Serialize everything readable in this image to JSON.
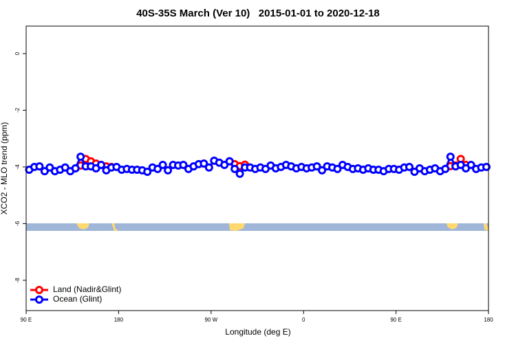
{
  "chart_data": {
    "type": "line",
    "title": "40S-35S March (Ver 10)   2015-01-01 to 2020-12-18",
    "xlabel": "Longitude (deg E)",
    "ylabel": "XCO2 - MLO trend (ppm)",
    "xlim": [
      90,
      540
    ],
    "ylim": [
      -9.07,
      0.97
    ],
    "xticks": [
      {
        "value": 90,
        "label": "90 E"
      },
      180,
      {
        "value": 270,
        "label": "90 W"
      },
      {
        "value": 360,
        "label": "0"
      },
      {
        "value": 450,
        "label": "90 E"
      },
      {
        "value": 540,
        "label": "180"
      }
    ],
    "yticks": [
      -8,
      -6,
      -4,
      -2,
      0
    ],
    "legend": "bottomleft",
    "x": [
      93,
      98,
      103,
      108,
      113,
      118,
      123,
      128,
      133,
      138,
      143,
      148,
      153,
      158,
      163,
      168,
      173,
      178,
      183,
      188,
      193,
      198,
      203,
      208,
      213,
      218,
      223,
      228,
      233,
      238,
      243,
      248,
      253,
      258,
      263,
      268,
      273,
      278,
      283,
      288,
      293,
      298,
      303,
      308,
      313,
      318,
      323,
      328,
      333,
      338,
      343,
      348,
      353,
      358,
      363,
      368,
      373,
      378,
      383,
      388,
      393,
      398,
      403,
      408,
      413,
      418,
      423,
      428,
      433,
      438,
      443,
      448,
      453,
      458,
      463,
      468,
      473,
      478,
      483,
      488,
      493,
      498,
      503,
      508,
      513,
      518,
      523,
      528,
      533,
      538
    ],
    "series": [
      {
        "name": "Land (Nadir&Glint)",
        "color": "#ff0000",
        "values": [
          null,
          null,
          null,
          null,
          null,
          null,
          null,
          null,
          null,
          null,
          -3.95,
          -3.72,
          -3.8,
          -3.88,
          -3.93,
          -3.98,
          -4.0,
          null,
          null,
          null,
          null,
          null,
          null,
          null,
          null,
          null,
          null,
          null,
          null,
          null,
          null,
          null,
          null,
          null,
          null,
          null,
          null,
          null,
          null,
          -3.8,
          -3.9,
          -3.97,
          -3.92,
          null,
          null,
          null,
          null,
          null,
          null,
          null,
          null,
          null,
          null,
          null,
          null,
          null,
          null,
          null,
          null,
          null,
          null,
          null,
          null,
          null,
          null,
          null,
          null,
          null,
          null,
          null,
          null,
          null,
          null,
          null,
          null,
          null,
          null,
          null,
          null,
          null,
          null,
          null,
          -3.97,
          -3.95,
          -3.72,
          -3.93,
          null,
          null,
          null,
          null
        ]
      },
      {
        "name": "Ocean (Glint)",
        "color": "#0000ff",
        "values": [
          -4.1,
          -4.0,
          -3.98,
          -4.15,
          -4.02,
          -4.15,
          -4.1,
          -4.02,
          -4.15,
          -4.05,
          -3.64,
          -3.98,
          -3.98,
          -4.05,
          -3.93,
          -4.12,
          -4.02,
          -4.0,
          -4.1,
          -4.07,
          -4.1,
          -4.1,
          -4.12,
          -4.17,
          -4.02,
          -4.07,
          -3.93,
          -4.12,
          -3.93,
          -3.95,
          -3.93,
          -4.07,
          -3.98,
          -3.9,
          -3.88,
          -4.02,
          -3.78,
          -3.85,
          -3.93,
          -3.8,
          -4.07,
          -4.24,
          -4.02,
          -4.02,
          -4.07,
          -4.02,
          -4.07,
          -3.95,
          -4.05,
          -4.0,
          -3.93,
          -3.98,
          -4.05,
          -4.0,
          -4.05,
          -4.02,
          -3.98,
          -4.12,
          -3.98,
          -4.02,
          -4.07,
          -3.93,
          -4.0,
          -4.07,
          -4.05,
          -4.1,
          -4.05,
          -4.1,
          -4.1,
          -4.15,
          -4.07,
          -4.07,
          -4.1,
          -4.02,
          -4.0,
          -4.17,
          -4.05,
          -4.15,
          -4.1,
          -4.05,
          -4.15,
          -4.07,
          -3.64,
          -3.98,
          -3.93,
          -4.05,
          -3.93,
          -4.07,
          -4.02,
          -4.0
        ]
      }
    ]
  }
}
